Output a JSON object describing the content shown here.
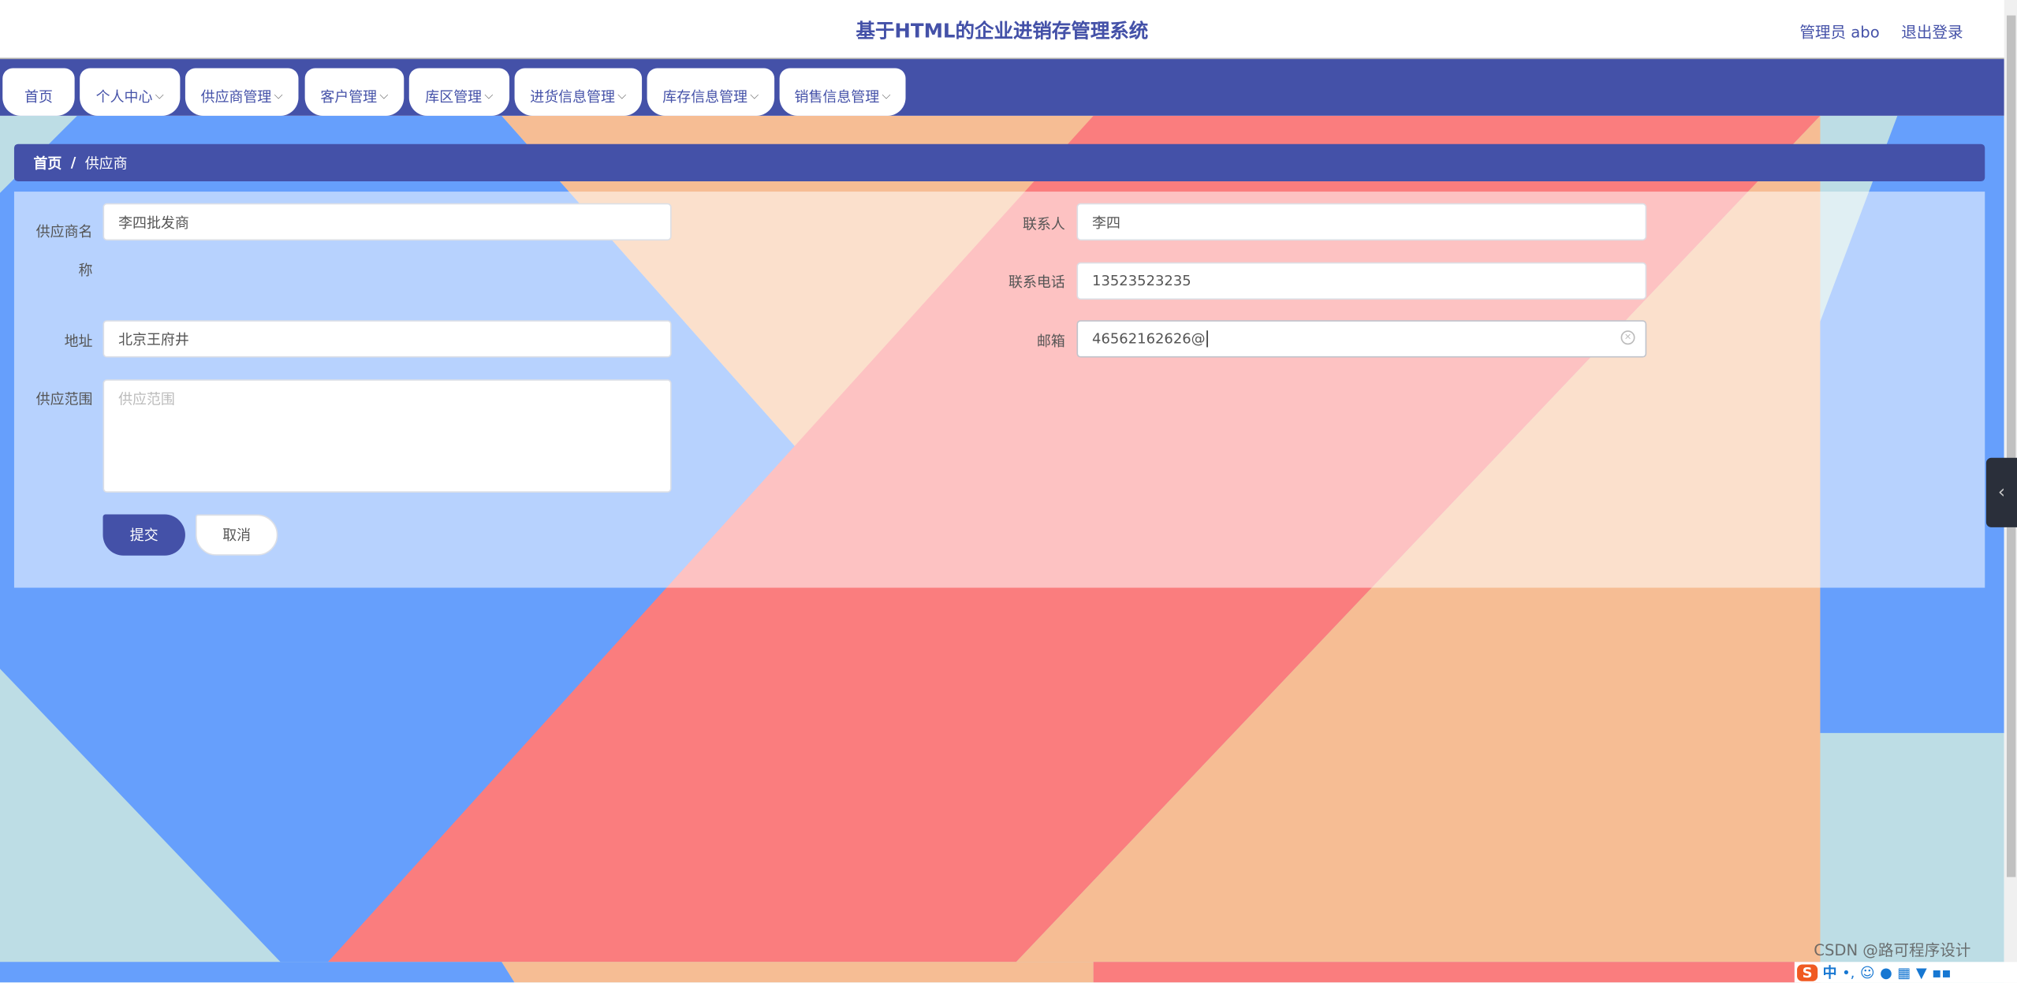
{
  "header": {
    "title": "基于HTML的企业进销存管理系统",
    "user": "管理员 abo",
    "logout": "退出登录"
  },
  "nav": {
    "tabs": [
      {
        "label": "首页",
        "dropdown": false
      },
      {
        "label": "个人中心",
        "dropdown": true
      },
      {
        "label": "供应商管理",
        "dropdown": true
      },
      {
        "label": "客户管理",
        "dropdown": true
      },
      {
        "label": "库区管理",
        "dropdown": true
      },
      {
        "label": "进货信息管理",
        "dropdown": true
      },
      {
        "label": "库存信息管理",
        "dropdown": true
      },
      {
        "label": "销售信息管理",
        "dropdown": true
      }
    ],
    "chevron": "⌵"
  },
  "breadcrumb": {
    "home": "首页",
    "separator": "/",
    "current": "供应商"
  },
  "form": {
    "supplier_name": {
      "label": "供应商名称",
      "value": "李四批发商"
    },
    "contact": {
      "label": "联系人",
      "value": "李四"
    },
    "phone": {
      "label": "联系电话",
      "value": "13523523235"
    },
    "address": {
      "label": "地址",
      "value": "北京王府井"
    },
    "email": {
      "label": "邮箱",
      "value": "46562162626@"
    },
    "scope": {
      "label": "供应范围",
      "placeholder": "供应范围",
      "value": ""
    },
    "submit": "提交",
    "cancel": "取消"
  },
  "taskbar": {
    "ime_logo": "S",
    "ime_lang": "中",
    "watermark": "CSDN @路可程序设计"
  },
  "colors": {
    "primary": "#4451a8",
    "bg_blue": "#669ffc",
    "bg_peach": "#f6bd94",
    "bg_salmon": "#fa7d7e",
    "bg_lightblue": "#bddde5"
  }
}
